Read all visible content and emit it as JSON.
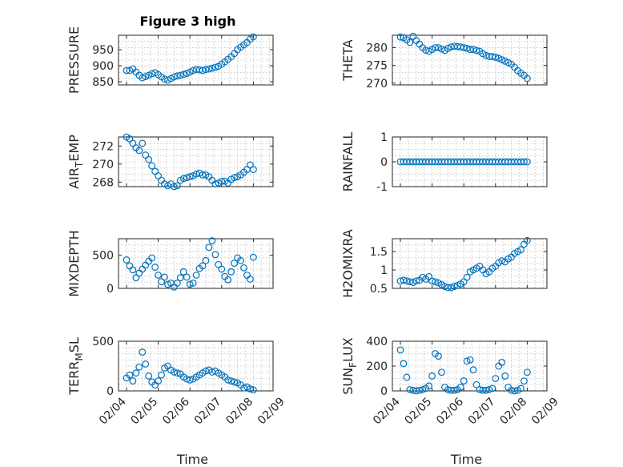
{
  "figure": {
    "title": "Figure 3 high",
    "marker_color": "#0072BD"
  },
  "chart_data": [
    {
      "id": "pressure",
      "type": "scatter",
      "title": "Figure 3 high",
      "ylabel": "PRESSURE",
      "ylabel_sub": "",
      "ylabel_suffix": "",
      "xlabel": "",
      "xlim": [
        0,
        5
      ],
      "ylim": [
        840,
        995
      ],
      "yticks": [
        850,
        900,
        950
      ],
      "x": [
        0.0,
        0.1,
        0.2,
        0.3,
        0.4,
        0.5,
        0.6,
        0.7,
        0.8,
        0.9,
        1.0,
        1.1,
        1.2,
        1.3,
        1.4,
        1.5,
        1.6,
        1.7,
        1.8,
        1.9,
        2.0,
        2.1,
        2.2,
        2.3,
        2.4,
        2.5,
        2.6,
        2.7,
        2.8,
        2.9,
        3.0,
        3.1,
        3.2,
        3.3,
        3.4,
        3.5,
        3.6,
        3.7,
        3.8,
        3.9,
        4.0
      ],
      "y": [
        885,
        885,
        890,
        880,
        870,
        862,
        866,
        870,
        875,
        878,
        872,
        865,
        858,
        855,
        860,
        865,
        868,
        870,
        873,
        876,
        880,
        885,
        888,
        887,
        885,
        888,
        890,
        892,
        895,
        898,
        905,
        912,
        920,
        928,
        938,
        950,
        958,
        965,
        972,
        983,
        990
      ]
    },
    {
      "id": "theta",
      "type": "scatter",
      "title": "",
      "ylabel": "THETA",
      "ylabel_sub": "",
      "ylabel_suffix": "",
      "xlabel": "",
      "xlim": [
        0,
        5
      ],
      "ylim": [
        269.5,
        283.5
      ],
      "yticks": [
        270,
        275,
        280
      ],
      "x": [
        0.0,
        0.1,
        0.2,
        0.3,
        0.4,
        0.5,
        0.6,
        0.7,
        0.8,
        0.9,
        1.0,
        1.1,
        1.2,
        1.3,
        1.4,
        1.5,
        1.6,
        1.7,
        1.8,
        1.9,
        2.0,
        2.1,
        2.2,
        2.3,
        2.4,
        2.5,
        2.6,
        2.7,
        2.8,
        2.9,
        3.0,
        3.1,
        3.2,
        3.3,
        3.4,
        3.5,
        3.6,
        3.7,
        3.8,
        3.9,
        4.0
      ],
      "y": [
        283,
        282.8,
        282.2,
        281.5,
        283.2,
        282,
        281,
        280,
        279.3,
        279,
        279.5,
        280,
        280,
        279.6,
        279.2,
        279.8,
        280.2,
        280.4,
        280.3,
        280.2,
        280,
        279.8,
        279.5,
        279.5,
        279.2,
        279,
        278.3,
        277.8,
        277.5,
        277.5,
        277.3,
        277,
        276.6,
        276.2,
        275.8,
        275.3,
        274.5,
        273.5,
        272.8,
        272.2,
        271.3
      ]
    },
    {
      "id": "air_temp",
      "type": "scatter",
      "title": "",
      "ylabel": "AIR",
      "ylabel_sub": "T",
      "ylabel_suffix": "EMP",
      "xlabel": "",
      "xlim": [
        0,
        5
      ],
      "ylim": [
        267.5,
        273
      ],
      "yticks": [
        268,
        270,
        272
      ],
      "x": [
        0.0,
        0.1,
        0.2,
        0.3,
        0.4,
        0.5,
        0.6,
        0.7,
        0.8,
        0.9,
        1.0,
        1.1,
        1.2,
        1.3,
        1.4,
        1.5,
        1.6,
        1.7,
        1.8,
        1.9,
        2.0,
        2.1,
        2.2,
        2.3,
        2.4,
        2.5,
        2.6,
        2.7,
        2.8,
        2.9,
        3.0,
        3.1,
        3.2,
        3.3,
        3.4,
        3.5,
        3.6,
        3.7,
        3.8,
        3.9,
        4.0
      ],
      "y": [
        273,
        272.8,
        272.3,
        271.8,
        271.5,
        272.3,
        271,
        270.5,
        269.8,
        269.2,
        268.7,
        268.2,
        267.8,
        267.6,
        267.8,
        267.5,
        267.6,
        268.2,
        268.4,
        268.5,
        268.6,
        268.7,
        268.9,
        269,
        268.8,
        268.8,
        268.6,
        268.2,
        267.8,
        267.9,
        268.1,
        268.1,
        267.9,
        268.3,
        268.5,
        268.6,
        268.8,
        269.1,
        269.4,
        269.9,
        269.4
      ]
    },
    {
      "id": "rainfall",
      "type": "scatter",
      "title": "",
      "ylabel": "RAINFALL",
      "ylabel_sub": "",
      "ylabel_suffix": "",
      "xlabel": "",
      "xlim": [
        0,
        5
      ],
      "ylim": [
        -1,
        1
      ],
      "yticks": [
        -1,
        0,
        1
      ],
      "x": [
        0.0,
        0.1,
        0.2,
        0.3,
        0.4,
        0.5,
        0.6,
        0.7,
        0.8,
        0.9,
        1.0,
        1.1,
        1.2,
        1.3,
        1.4,
        1.5,
        1.6,
        1.7,
        1.8,
        1.9,
        2.0,
        2.1,
        2.2,
        2.3,
        2.4,
        2.5,
        2.6,
        2.7,
        2.8,
        2.9,
        3.0,
        3.1,
        3.2,
        3.3,
        3.4,
        3.5,
        3.6,
        3.7,
        3.8,
        3.9,
        4.0
      ],
      "y": [
        0,
        0,
        0,
        0,
        0,
        0,
        0,
        0,
        0,
        0,
        0,
        0,
        0,
        0,
        0,
        0,
        0,
        0,
        0,
        0,
        0,
        0,
        0,
        0,
        0,
        0,
        0,
        0,
        0,
        0,
        0,
        0,
        0,
        0,
        0,
        0,
        0,
        0,
        0,
        0,
        0
      ]
    },
    {
      "id": "mixdepth",
      "type": "scatter",
      "title": "",
      "ylabel": "MIXDEPTH",
      "ylabel_sub": "",
      "ylabel_suffix": "",
      "xlabel": "",
      "xlim": [
        0,
        5
      ],
      "ylim": [
        0,
        750
      ],
      "yticks": [
        0,
        500
      ],
      "x": [
        0.0,
        0.1,
        0.2,
        0.3,
        0.4,
        0.5,
        0.6,
        0.7,
        0.8,
        0.9,
        1.0,
        1.1,
        1.2,
        1.3,
        1.4,
        1.5,
        1.6,
        1.7,
        1.8,
        1.9,
        2.0,
        2.1,
        2.2,
        2.3,
        2.4,
        2.5,
        2.6,
        2.7,
        2.8,
        2.9,
        3.0,
        3.1,
        3.2,
        3.3,
        3.4,
        3.5,
        3.6,
        3.7,
        3.8,
        3.9,
        4.0
      ],
      "y": [
        430,
        340,
        280,
        160,
        230,
        290,
        350,
        410,
        460,
        320,
        200,
        100,
        170,
        60,
        80,
        20,
        80,
        160,
        250,
        170,
        60,
        80,
        200,
        300,
        340,
        420,
        620,
        720,
        510,
        360,
        290,
        180,
        130,
        250,
        380,
        460,
        420,
        310,
        200,
        140,
        470
      ]
    },
    {
      "id": "h2omixra",
      "type": "scatter",
      "title": "",
      "ylabel": "H2OMIXRA",
      "ylabel_sub": "",
      "ylabel_suffix": "",
      "xlabel": "",
      "xlim": [
        0,
        5
      ],
      "ylim": [
        0.5,
        1.85
      ],
      "yticks": [
        0.5,
        1,
        1.5
      ],
      "x": [
        0.0,
        0.1,
        0.2,
        0.3,
        0.4,
        0.5,
        0.6,
        0.7,
        0.8,
        0.9,
        1.0,
        1.1,
        1.2,
        1.3,
        1.4,
        1.5,
        1.6,
        1.7,
        1.8,
        1.9,
        2.0,
        2.1,
        2.2,
        2.3,
        2.4,
        2.5,
        2.6,
        2.7,
        2.8,
        2.9,
        3.0,
        3.1,
        3.2,
        3.3,
        3.4,
        3.5,
        3.6,
        3.7,
        3.8,
        3.9,
        4.0
      ],
      "y": [
        0.7,
        0.72,
        0.7,
        0.68,
        0.66,
        0.7,
        0.72,
        0.8,
        0.75,
        0.82,
        0.7,
        0.68,
        0.65,
        0.6,
        0.55,
        0.52,
        0.52,
        0.55,
        0.58,
        0.62,
        0.68,
        0.8,
        0.95,
        1.0,
        1.05,
        1.1,
        1.0,
        0.9,
        0.95,
        1.05,
        1.1,
        1.2,
        1.25,
        1.22,
        1.3,
        1.35,
        1.45,
        1.5,
        1.55,
        1.7,
        1.8
      ]
    },
    {
      "id": "terr_msl",
      "type": "scatter",
      "title": "",
      "ylabel": "TERR",
      "ylabel_sub": "M",
      "ylabel_suffix": "SL",
      "xlabel": "Time",
      "xlim": [
        0,
        5
      ],
      "ylim": [
        0,
        500
      ],
      "yticks": [
        0,
        500
      ],
      "xticks": [
        0,
        1,
        2,
        3,
        4,
        5
      ],
      "xticklabels": [
        "02/04",
        "02/05",
        "02/06",
        "02/07",
        "02/08",
        "02/09"
      ],
      "x": [
        0.0,
        0.1,
        0.2,
        0.3,
        0.4,
        0.5,
        0.6,
        0.7,
        0.8,
        0.9,
        1.0,
        1.1,
        1.2,
        1.3,
        1.4,
        1.5,
        1.6,
        1.7,
        1.8,
        1.9,
        2.0,
        2.1,
        2.2,
        2.3,
        2.4,
        2.5,
        2.6,
        2.7,
        2.8,
        2.9,
        3.0,
        3.1,
        3.2,
        3.3,
        3.4,
        3.5,
        3.6,
        3.7,
        3.8,
        3.9,
        4.0
      ],
      "y": [
        130,
        160,
        100,
        180,
        240,
        390,
        270,
        150,
        90,
        60,
        100,
        160,
        230,
        250,
        210,
        190,
        180,
        170,
        140,
        120,
        110,
        120,
        140,
        160,
        180,
        200,
        210,
        190,
        200,
        180,
        160,
        140,
        110,
        100,
        90,
        80,
        60,
        30,
        40,
        20,
        10
      ]
    },
    {
      "id": "sun_flux",
      "type": "scatter",
      "title": "",
      "ylabel": "SUN",
      "ylabel_sub": "F",
      "ylabel_suffix": "LUX",
      "xlabel": "Time",
      "xlim": [
        0,
        5
      ],
      "ylim": [
        0,
        400
      ],
      "yticks": [
        0,
        200,
        400
      ],
      "xticks": [
        0,
        1,
        2,
        3,
        4,
        5
      ],
      "xticklabels": [
        "02/04",
        "02/05",
        "02/06",
        "02/07",
        "02/08",
        "02/09"
      ],
      "x": [
        0.0,
        0.1,
        0.2,
        0.3,
        0.4,
        0.5,
        0.6,
        0.7,
        0.8,
        0.9,
        1.0,
        1.1,
        1.2,
        1.3,
        1.4,
        1.5,
        1.6,
        1.7,
        1.8,
        1.9,
        2.0,
        2.1,
        2.2,
        2.3,
        2.4,
        2.5,
        2.6,
        2.7,
        2.8,
        2.9,
        3.0,
        3.1,
        3.2,
        3.3,
        3.4,
        3.5,
        3.6,
        3.7,
        3.8,
        3.9,
        4.0
      ],
      "y": [
        330,
        220,
        110,
        10,
        5,
        0,
        5,
        10,
        20,
        40,
        120,
        300,
        280,
        150,
        30,
        10,
        5,
        5,
        10,
        30,
        80,
        240,
        250,
        170,
        50,
        10,
        5,
        5,
        10,
        20,
        100,
        200,
        230,
        120,
        30,
        5,
        0,
        5,
        20,
        80,
        150
      ]
    }
  ]
}
